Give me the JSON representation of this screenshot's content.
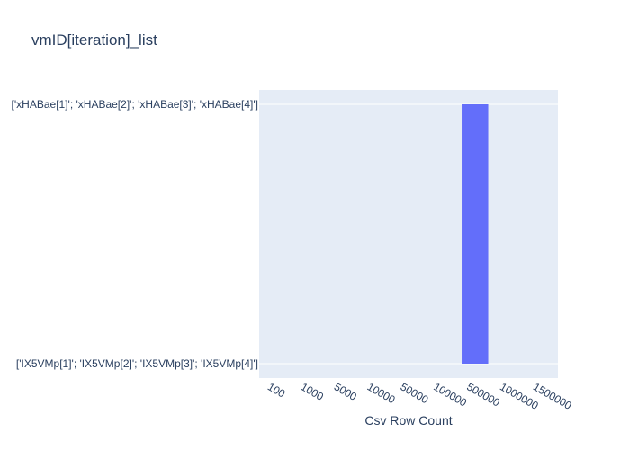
{
  "chart_data": {
    "type": "bar",
    "title": "vmID[iteration]_list",
    "xlabel": "Csv Row Count",
    "ylabel": "",
    "x_categories": [
      "100",
      "1000",
      "5000",
      "10000",
      "50000",
      "100000",
      "500000",
      "1000000",
      "1500000"
    ],
    "y_categories": [
      "['IX5VMp[1]'; 'IX5VMp[2]'; 'IX5VMp[3]'; 'IX5VMp[4]']",
      "['xHABae[1]'; 'xHABae[2]'; 'xHABae[3]'; 'xHABae[4]']"
    ],
    "bars": [
      {
        "x": "500000",
        "y_from": "['IX5VMp[1]'; 'IX5VMp[2]'; 'IX5VMp[3]'; 'IX5VMp[4]']",
        "y_to": "['xHABae[1]'; 'xHABae[2]'; 'xHABae[3]'; 'xHABae[4]']"
      }
    ],
    "grid": true,
    "legend": "none",
    "colors": {
      "plot_bg": "#e5ecf6",
      "bar": "#636efa",
      "grid": "#ffffff",
      "text": "#2a3f5f"
    }
  }
}
